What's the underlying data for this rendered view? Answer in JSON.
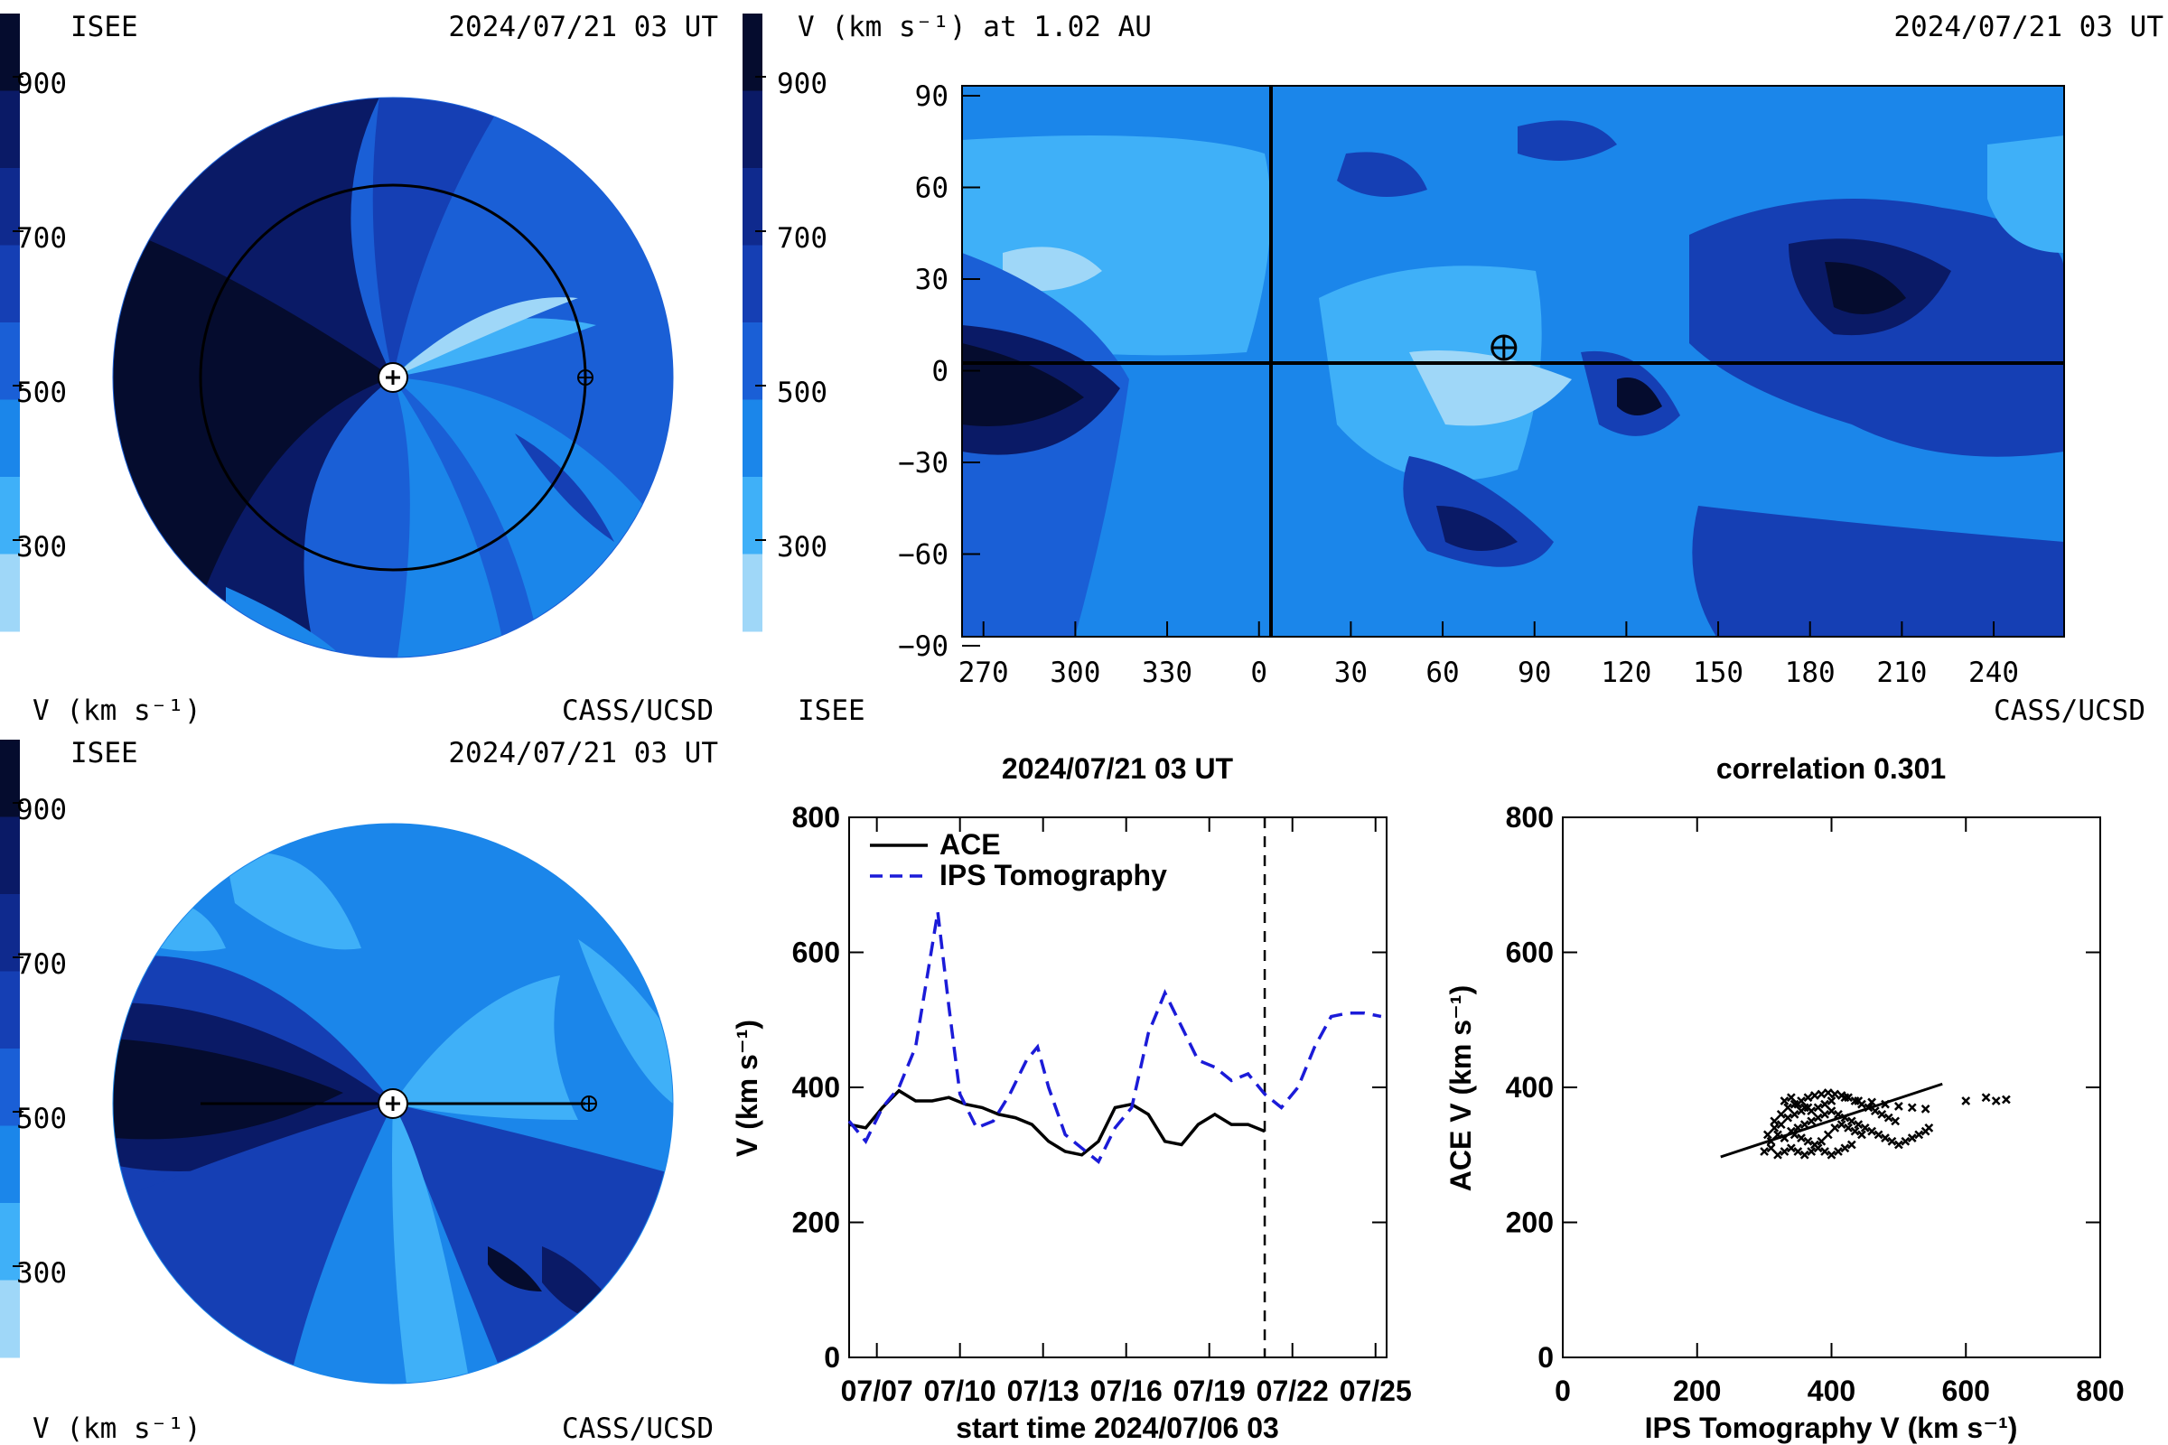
{
  "colors": {
    "v200": "#9fd7f8",
    "v300": "#3fb0f8",
    "v400": "#1b86ea",
    "v500": "#1a5fd6",
    "v600": "#153fb4",
    "v700": "#0f2a8e",
    "v800": "#0a1a66",
    "v900": "#050c2e",
    "ips_line": "#1b1bd8"
  },
  "colorbar": {
    "ticks": [
      "900",
      "700",
      "500",
      "300"
    ],
    "unit_label": "V (km s⁻¹)",
    "bottom_right": "ISEE"
  },
  "panel_top_left": {
    "org_left": "ISEE",
    "timestamp": "2024/07/21 03 UT",
    "unit_label": "V (km s⁻¹)",
    "org_right": "CASS/UCSD"
  },
  "panel_bottom_left": {
    "org_left": "ISEE",
    "timestamp": "2024/07/21 03 UT",
    "unit_label": "V (km s⁻¹)",
    "org_right": "CASS/UCSD"
  },
  "panel_map": {
    "title": "V (km s⁻¹) at 1.02 AU",
    "timestamp": "2024/07/21 03 UT",
    "org_right": "CASS/UCSD",
    "y_ticks": [
      "90",
      "60",
      "30",
      "0",
      "−30",
      "−60",
      "−90"
    ],
    "x_ticks": [
      "270",
      "300",
      "330",
      "0",
      "30",
      "60",
      "90",
      "120",
      "150",
      "180",
      "210",
      "240"
    ],
    "earth_position": {
      "longitude": 80,
      "latitude": 5
    }
  },
  "chart_data": [
    {
      "type": "line",
      "title": "2024/07/21 03 UT",
      "xlabel": "start time 2024/07/06 03",
      "ylabel": "V (km s⁻¹)",
      "ylim": [
        0,
        800
      ],
      "y_ticks": [
        "0",
        "200",
        "400",
        "600",
        "800"
      ],
      "x_ticks": [
        "07/07",
        "07/10",
        "07/13",
        "07/16",
        "07/19",
        "07/22",
        "07/25"
      ],
      "x_tick_days": [
        1,
        4,
        7,
        10,
        13,
        16,
        19
      ],
      "xlim_days": [
        0,
        19.4
      ],
      "current_time_day": 15.0,
      "legend_position": "top-left",
      "series": [
        {
          "name": "ACE",
          "style": "solid",
          "x": [
            0,
            0.6,
            1.2,
            1.8,
            2.4,
            3.0,
            3.6,
            4.2,
            4.8,
            5.4,
            6.0,
            6.6,
            7.2,
            7.8,
            8.4,
            9.0,
            9.6,
            10.2,
            10.8,
            11.4,
            12.0,
            12.6,
            13.2,
            13.8,
            14.4,
            15.0
          ],
          "y": [
            345,
            340,
            370,
            395,
            380,
            380,
            385,
            375,
            370,
            360,
            355,
            345,
            320,
            305,
            300,
            320,
            370,
            375,
            360,
            320,
            315,
            345,
            360,
            345,
            345,
            335
          ]
        },
        {
          "name": "IPS Tomography",
          "style": "dashed",
          "x": [
            0,
            0.6,
            1.2,
            1.8,
            2.4,
            2.8,
            3.2,
            3.6,
            4.0,
            4.6,
            5.2,
            5.8,
            6.4,
            6.8,
            7.2,
            7.8,
            8.4,
            9.0,
            9.6,
            10.2,
            10.8,
            11.4,
            12.0,
            12.6,
            13.2,
            13.8,
            14.4,
            15.0,
            15.6,
            16.2,
            16.8,
            17.4,
            18.0,
            18.6,
            19.2
          ],
          "y": [
            350,
            320,
            370,
            400,
            460,
            560,
            660,
            520,
            390,
            340,
            350,
            390,
            440,
            460,
            400,
            330,
            310,
            290,
            340,
            370,
            480,
            540,
            490,
            440,
            430,
            410,
            420,
            390,
            370,
            400,
            460,
            505,
            510,
            510,
            505
          ]
        }
      ]
    },
    {
      "type": "scatter",
      "title": "correlation 0.301",
      "xlabel": "IPS Tomography V (km s⁻¹)",
      "ylabel": "ACE V (km s⁻¹)",
      "xlim": [
        0,
        800
      ],
      "ylim": [
        0,
        800
      ],
      "x_ticks": [
        "0",
        "200",
        "400",
        "600",
        "800"
      ],
      "y_ticks": [
        "0",
        "200",
        "400",
        "600",
        "800"
      ],
      "fit_line": {
        "x": [
          235,
          565
        ],
        "y": [
          297,
          405
        ]
      },
      "points": [
        [
          310,
          320
        ],
        [
          320,
          330
        ],
        [
          330,
          325
        ],
        [
          340,
          335
        ],
        [
          350,
          340
        ],
        [
          360,
          345
        ],
        [
          370,
          350
        ],
        [
          380,
          355
        ],
        [
          390,
          360
        ],
        [
          400,
          365
        ],
        [
          410,
          360
        ],
        [
          420,
          355
        ],
        [
          430,
          350
        ],
        [
          440,
          345
        ],
        [
          450,
          340
        ],
        [
          460,
          335
        ],
        [
          470,
          330
        ],
        [
          480,
          325
        ],
        [
          490,
          320
        ],
        [
          500,
          315
        ],
        [
          510,
          320
        ],
        [
          520,
          325
        ],
        [
          530,
          330
        ],
        [
          540,
          335
        ],
        [
          545,
          340
        ],
        [
          315,
          350
        ],
        [
          325,
          360
        ],
        [
          335,
          370
        ],
        [
          345,
          375
        ],
        [
          355,
          380
        ],
        [
          365,
          385
        ],
        [
          375,
          388
        ],
        [
          385,
          390
        ],
        [
          395,
          392
        ],
        [
          405,
          390
        ],
        [
          415,
          388
        ],
        [
          425,
          385
        ],
        [
          435,
          380
        ],
        [
          445,
          375
        ],
        [
          455,
          370
        ],
        [
          465,
          365
        ],
        [
          475,
          360
        ],
        [
          485,
          355
        ],
        [
          495,
          350
        ],
        [
          300,
          305
        ],
        [
          310,
          310
        ],
        [
          320,
          300
        ],
        [
          330,
          305
        ],
        [
          340,
          310
        ],
        [
          350,
          305
        ],
        [
          360,
          300
        ],
        [
          370,
          305
        ],
        [
          380,
          310
        ],
        [
          390,
          305
        ],
        [
          400,
          300
        ],
        [
          410,
          305
        ],
        [
          420,
          310
        ],
        [
          430,
          315
        ],
        [
          330,
          380
        ],
        [
          340,
          385
        ],
        [
          350,
          375
        ],
        [
          360,
          370
        ],
        [
          370,
          365
        ],
        [
          380,
          370
        ],
        [
          390,
          375
        ],
        [
          400,
          380
        ],
        [
          420,
          385
        ],
        [
          440,
          380
        ],
        [
          460,
          378
        ],
        [
          480,
          375
        ],
        [
          500,
          372
        ],
        [
          520,
          370
        ],
        [
          540,
          368
        ],
        [
          600,
          380
        ],
        [
          630,
          385
        ],
        [
          645,
          380
        ],
        [
          660,
          382
        ],
        [
          305,
          330
        ],
        [
          315,
          340
        ],
        [
          325,
          345
        ],
        [
          335,
          355
        ],
        [
          345,
          360
        ],
        [
          355,
          365
        ],
        [
          365,
          370
        ],
        [
          345,
          330
        ],
        [
          355,
          325
        ],
        [
          365,
          320
        ],
        [
          375,
          315
        ],
        [
          385,
          320
        ],
        [
          395,
          330
        ],
        [
          405,
          340
        ],
        [
          415,
          345
        ],
        [
          425,
          340
        ],
        [
          435,
          335
        ],
        [
          445,
          330
        ]
      ]
    }
  ]
}
